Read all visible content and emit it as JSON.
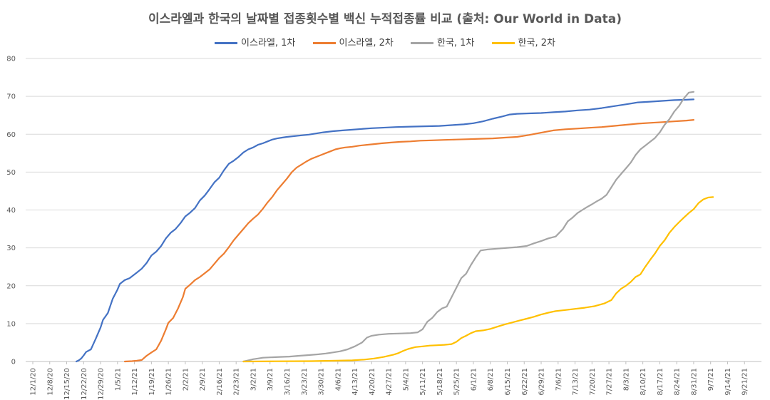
{
  "title": "이스라엘과 한국의 날짜별 접종횟수별 백신 누적접종률 비교 (출처: Our World in  Data)",
  "colors": {
    "israel_first": "#4472C4",
    "israel_second": "#ED7D31",
    "korea_first": "#A5A5A5",
    "korea_second": "#FFC000",
    "grid": "#D9D9D9",
    "axis": "#BFBFBF"
  },
  "chart_data": {
    "type": "line",
    "title": "이스라엘과 한국의 날짜별 접종횟수별 백신 누적접종률 비교 (출처: Our World in  Data)",
    "xlabel": "",
    "ylabel": "",
    "ylim": [
      0,
      80
    ],
    "yticks": [
      0,
      10,
      20,
      30,
      40,
      50,
      60,
      70,
      80
    ],
    "grid": true,
    "legend_position": "top",
    "x_range_days": [
      0,
      295
    ],
    "x_tick_labels": [
      "12/1/20",
      "12/8/20",
      "12/15/20",
      "12/22/20",
      "12/29/20",
      "1/5/21",
      "1/12/21",
      "1/19/21",
      "1/26/21",
      "2/2/21",
      "2/9/21",
      "2/16/21",
      "2/23/21",
      "3/2/21",
      "3/9/21",
      "3/16/21",
      "3/23/21",
      "3/30/21",
      "4/6/21",
      "4/13/21",
      "4/20/21",
      "4/27/21",
      "5/4/21",
      "5/11/21",
      "5/18/21",
      "5/25/21",
      "6/1/21",
      "6/8/21",
      "6/15/21",
      "6/22/21",
      "6/29/21",
      "7/6/21",
      "7/13/21",
      "7/20/21",
      "7/27/21",
      "8/3/21",
      "8/10/21",
      "8/17/21",
      "8/24/21",
      "8/31/21",
      "9/7/21",
      "9/14/21",
      "9/21/21"
    ],
    "series": [
      {
        "name": "이스라엘, 1차",
        "color": "#4472C4",
        "points": [
          [
            18,
            0
          ],
          [
            19,
            0.3
          ],
          [
            20,
            0.8
          ],
          [
            21,
            1.6
          ],
          [
            22,
            2.5
          ],
          [
            24,
            3.2
          ],
          [
            26,
            6
          ],
          [
            28,
            9
          ],
          [
            29,
            11
          ],
          [
            31,
            12.8
          ],
          [
            33,
            16.5
          ],
          [
            35,
            19
          ],
          [
            36,
            20.5
          ],
          [
            38,
            21.5
          ],
          [
            40,
            22
          ],
          [
            41,
            22.5
          ],
          [
            43,
            23.5
          ],
          [
            45,
            24.5
          ],
          [
            47,
            26
          ],
          [
            49,
            28
          ],
          [
            51,
            29
          ],
          [
            53,
            30.5
          ],
          [
            55,
            32.5
          ],
          [
            57,
            34
          ],
          [
            59,
            35
          ],
          [
            61,
            36.5
          ],
          [
            63,
            38.3
          ],
          [
            65,
            39.3
          ],
          [
            67,
            40.5
          ],
          [
            69,
            42.5
          ],
          [
            71,
            43.8
          ],
          [
            73,
            45.5
          ],
          [
            75,
            47.3
          ],
          [
            77,
            48.5
          ],
          [
            79,
            50.5
          ],
          [
            81,
            52.2
          ],
          [
            83,
            53
          ],
          [
            85,
            54
          ],
          [
            87,
            55.2
          ],
          [
            89,
            56
          ],
          [
            91,
            56.5
          ],
          [
            93,
            57.2
          ],
          [
            95,
            57.6
          ],
          [
            97,
            58.1
          ],
          [
            99,
            58.6
          ],
          [
            101,
            58.9
          ],
          [
            103,
            59.1
          ],
          [
            105,
            59.3
          ],
          [
            108,
            59.5
          ],
          [
            111,
            59.7
          ],
          [
            114,
            59.9
          ],
          [
            117,
            60.2
          ],
          [
            120,
            60.5
          ],
          [
            124,
            60.8
          ],
          [
            128,
            61
          ],
          [
            132,
            61.2
          ],
          [
            136,
            61.4
          ],
          [
            140,
            61.6
          ],
          [
            144,
            61.7
          ],
          [
            150,
            61.9
          ],
          [
            156,
            62
          ],
          [
            162,
            62.1
          ],
          [
            168,
            62.2
          ],
          [
            173,
            62.4
          ],
          [
            178,
            62.6
          ],
          [
            182,
            62.9
          ],
          [
            186,
            63.4
          ],
          [
            190,
            64.1
          ],
          [
            194,
            64.7
          ],
          [
            197,
            65.2
          ],
          [
            200,
            65.4
          ],
          [
            205,
            65.5
          ],
          [
            210,
            65.6
          ],
          [
            215,
            65.8
          ],
          [
            220,
            66
          ],
          [
            225,
            66.3
          ],
          [
            230,
            66.5
          ],
          [
            235,
            66.9
          ],
          [
            240,
            67.4
          ],
          [
            245,
            67.9
          ],
          [
            250,
            68.4
          ],
          [
            255,
            68.6
          ],
          [
            260,
            68.8
          ],
          [
            265,
            69
          ],
          [
            270,
            69.1
          ],
          [
            273,
            69.2
          ]
        ]
      },
      {
        "name": "이스라엘, 2차",
        "color": "#ED7D31",
        "points": [
          [
            38,
            0
          ],
          [
            41,
            0.1
          ],
          [
            43,
            0.2
          ],
          [
            45,
            0.4
          ],
          [
            47,
            1.5
          ],
          [
            49,
            2.4
          ],
          [
            51,
            3.2
          ],
          [
            53,
            5.5
          ],
          [
            55,
            8.5
          ],
          [
            56,
            10.2
          ],
          [
            58,
            11.5
          ],
          [
            60,
            14
          ],
          [
            62,
            17
          ],
          [
            63,
            19.2
          ],
          [
            65,
            20.3
          ],
          [
            67,
            21.5
          ],
          [
            69,
            22.3
          ],
          [
            71,
            23.3
          ],
          [
            73,
            24.3
          ],
          [
            75,
            25.8
          ],
          [
            77,
            27.3
          ],
          [
            79,
            28.5
          ],
          [
            81,
            30.2
          ],
          [
            83,
            32
          ],
          [
            85,
            33.5
          ],
          [
            87,
            35
          ],
          [
            89,
            36.5
          ],
          [
            91,
            37.7
          ],
          [
            93,
            38.8
          ],
          [
            95,
            40.3
          ],
          [
            97,
            42
          ],
          [
            99,
            43.5
          ],
          [
            101,
            45.3
          ],
          [
            103,
            46.8
          ],
          [
            105,
            48.3
          ],
          [
            107,
            50
          ],
          [
            109,
            51.2
          ],
          [
            111,
            52
          ],
          [
            113,
            52.8
          ],
          [
            115,
            53.5
          ],
          [
            117,
            54
          ],
          [
            119,
            54.5
          ],
          [
            121,
            55
          ],
          [
            123,
            55.5
          ],
          [
            125,
            56
          ],
          [
            127,
            56.3
          ],
          [
            129,
            56.5
          ],
          [
            132,
            56.7
          ],
          [
            135,
            57
          ],
          [
            138,
            57.2
          ],
          [
            141,
            57.4
          ],
          [
            144,
            57.6
          ],
          [
            148,
            57.8
          ],
          [
            152,
            58
          ],
          [
            156,
            58.1
          ],
          [
            160,
            58.3
          ],
          [
            165,
            58.4
          ],
          [
            170,
            58.5
          ],
          [
            175,
            58.6
          ],
          [
            180,
            58.7
          ],
          [
            185,
            58.8
          ],
          [
            190,
            58.9
          ],
          [
            195,
            59.1
          ],
          [
            200,
            59.3
          ],
          [
            205,
            59.8
          ],
          [
            210,
            60.4
          ],
          [
            215,
            61
          ],
          [
            220,
            61.3
          ],
          [
            225,
            61.5
          ],
          [
            230,
            61.7
          ],
          [
            235,
            61.9
          ],
          [
            240,
            62.2
          ],
          [
            245,
            62.5
          ],
          [
            250,
            62.8
          ],
          [
            255,
            63
          ],
          [
            260,
            63.2
          ],
          [
            265,
            63.4
          ],
          [
            270,
            63.6
          ],
          [
            273,
            63.8
          ]
        ]
      },
      {
        "name": "한국, 1차",
        "color": "#A5A5A5",
        "points": [
          [
            87,
            0
          ],
          [
            89,
            0.3
          ],
          [
            91,
            0.6
          ],
          [
            93,
            0.8
          ],
          [
            95,
            1
          ],
          [
            98,
            1.1
          ],
          [
            102,
            1.2
          ],
          [
            106,
            1.3
          ],
          [
            110,
            1.5
          ],
          [
            114,
            1.7
          ],
          [
            118,
            1.9
          ],
          [
            121,
            2.1
          ],
          [
            124,
            2.4
          ],
          [
            127,
            2.7
          ],
          [
            130,
            3.2
          ],
          [
            133,
            4
          ],
          [
            136,
            5
          ],
          [
            138,
            6.3
          ],
          [
            140,
            6.8
          ],
          [
            143,
            7.1
          ],
          [
            147,
            7.3
          ],
          [
            152,
            7.4
          ],
          [
            156,
            7.5
          ],
          [
            159,
            7.7
          ],
          [
            161,
            8.5
          ],
          [
            163,
            10.5
          ],
          [
            165,
            11.5
          ],
          [
            167,
            13
          ],
          [
            169,
            14
          ],
          [
            171,
            14.5
          ],
          [
            173,
            17
          ],
          [
            175,
            19.5
          ],
          [
            177,
            22
          ],
          [
            179,
            23.2
          ],
          [
            181,
            25.5
          ],
          [
            183,
            27.5
          ],
          [
            185,
            29.3
          ],
          [
            188,
            29.6
          ],
          [
            192,
            29.8
          ],
          [
            196,
            30
          ],
          [
            200,
            30.2
          ],
          [
            204,
            30.5
          ],
          [
            207,
            31.2
          ],
          [
            210,
            31.8
          ],
          [
            213,
            32.5
          ],
          [
            216,
            33
          ],
          [
            219,
            35
          ],
          [
            221,
            37
          ],
          [
            223,
            38
          ],
          [
            225,
            39.2
          ],
          [
            227,
            40
          ],
          [
            229,
            40.8
          ],
          [
            231,
            41.5
          ],
          [
            233,
            42.3
          ],
          [
            235,
            43
          ],
          [
            237,
            44
          ],
          [
            239,
            46
          ],
          [
            241,
            48
          ],
          [
            243,
            49.5
          ],
          [
            245,
            51
          ],
          [
            247,
            52.5
          ],
          [
            249,
            54.5
          ],
          [
            251,
            56
          ],
          [
            253,
            57
          ],
          [
            255,
            58
          ],
          [
            257,
            59
          ],
          [
            259,
            60.5
          ],
          [
            261,
            62.5
          ],
          [
            263,
            64
          ],
          [
            265,
            66
          ],
          [
            267,
            67.5
          ],
          [
            269,
            69.5
          ],
          [
            271,
            71
          ],
          [
            273,
            71.2
          ]
        ]
      },
      {
        "name": "한국, 2차",
        "color": "#FFC000",
        "points": [
          [
            87,
            0
          ],
          [
            100,
            0.05
          ],
          [
            115,
            0.1
          ],
          [
            125,
            0.2
          ],
          [
            132,
            0.3
          ],
          [
            137,
            0.5
          ],
          [
            141,
            0.8
          ],
          [
            145,
            1.2
          ],
          [
            149,
            1.8
          ],
          [
            151,
            2.2
          ],
          [
            153,
            2.8
          ],
          [
            155,
            3.3
          ],
          [
            158,
            3.8
          ],
          [
            161,
            4
          ],
          [
            164,
            4.2
          ],
          [
            167,
            4.3
          ],
          [
            170,
            4.4
          ],
          [
            173,
            4.6
          ],
          [
            175,
            5.2
          ],
          [
            177,
            6.2
          ],
          [
            179,
            6.8
          ],
          [
            181,
            7.5
          ],
          [
            183,
            8
          ],
          [
            186,
            8.2
          ],
          [
            189,
            8.6
          ],
          [
            192,
            9.2
          ],
          [
            195,
            9.8
          ],
          [
            198,
            10.3
          ],
          [
            201,
            10.8
          ],
          [
            204,
            11.3
          ],
          [
            207,
            11.8
          ],
          [
            210,
            12.4
          ],
          [
            213,
            12.9
          ],
          [
            216,
            13.3
          ],
          [
            220,
            13.6
          ],
          [
            224,
            13.9
          ],
          [
            228,
            14.2
          ],
          [
            232,
            14.6
          ],
          [
            236,
            15.3
          ],
          [
            239,
            16.2
          ],
          [
            241,
            18
          ],
          [
            243,
            19.2
          ],
          [
            245,
            20
          ],
          [
            247,
            21
          ],
          [
            249,
            22.3
          ],
          [
            251,
            23
          ],
          [
            253,
            25
          ],
          [
            255,
            26.8
          ],
          [
            257,
            28.5
          ],
          [
            259,
            30.5
          ],
          [
            261,
            32
          ],
          [
            263,
            34
          ],
          [
            265,
            35.5
          ],
          [
            267,
            36.8
          ],
          [
            269,
            38
          ],
          [
            271,
            39.2
          ],
          [
            273,
            40.2
          ],
          [
            275,
            41.8
          ],
          [
            277,
            42.8
          ],
          [
            279,
            43.3
          ],
          [
            281,
            43.4
          ]
        ]
      }
    ]
  }
}
